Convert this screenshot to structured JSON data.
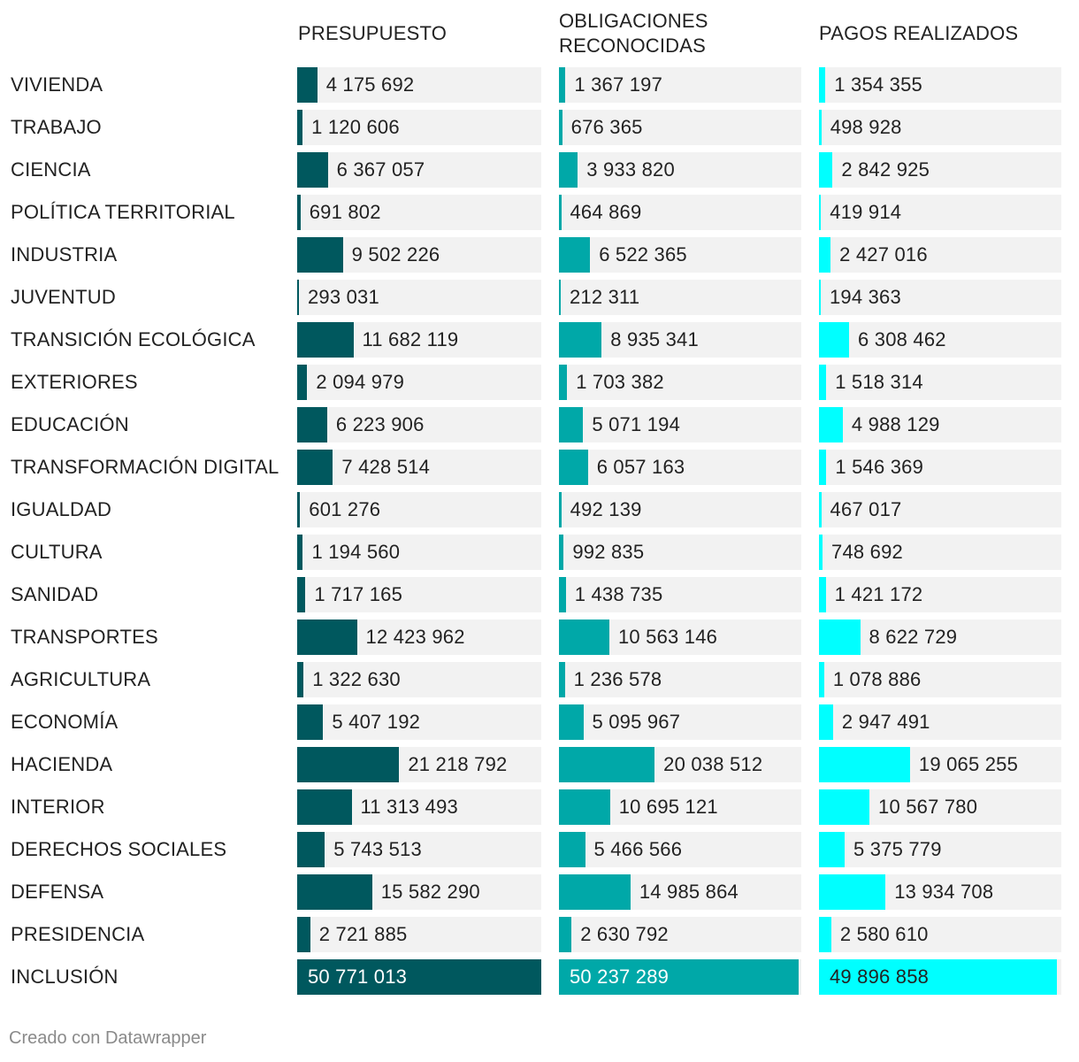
{
  "chart_data": {
    "type": "bar",
    "columns": [
      "PRESUPUESTO",
      "OBLIGACIONES RECONOCIDAS",
      "PAGOS REALIZADOS"
    ],
    "colors": [
      "#00585e",
      "#00a8a8",
      "#00ffff"
    ],
    "background_color": "#f2f2f2",
    "categories": [
      "VIVIENDA",
      "TRABAJO",
      "CIENCIA",
      "POLÍTICA TERRITORIAL",
      "INDUSTRIA",
      "JUVENTUD",
      "TRANSICIÓN ECOLÓGICA",
      "EXTERIORES",
      "EDUCACIÓN",
      "TRANSFORMACIÓN DIGITAL",
      "IGUALDAD",
      "CULTURA",
      "SANIDAD",
      "TRANSPORTES",
      "AGRICULTURA",
      "ECONOMÍA",
      "HACIENDA",
      "INTERIOR",
      "DERECHOS SOCIALES",
      "DEFENSA",
      "PRESIDENCIA",
      "INCLUSIÓN"
    ],
    "series": [
      {
        "name": "PRESUPUESTO",
        "values": [
          4175692,
          1120606,
          6367057,
          691802,
          9502226,
          293031,
          11682119,
          2094979,
          6223906,
          7428514,
          601276,
          1194560,
          1717165,
          12423962,
          1322630,
          5407192,
          21218792,
          11313493,
          5743513,
          15582290,
          2721885,
          50771013
        ],
        "labels": [
          "4 175 692",
          "1 120 606",
          "6 367 057",
          "691 802",
          "9 502 226",
          "293 031",
          "11 682 119",
          "2 094 979",
          "6 223 906",
          "7 428 514",
          "601 276",
          "1 194 560",
          "1 717 165",
          "12 423 962",
          "1 322 630",
          "5 407 192",
          "21 218 792",
          "11 313 493",
          "5 743 513",
          "15 582 290",
          "2 721 885",
          "50 771 013"
        ]
      },
      {
        "name": "OBLIGACIONES RECONOCIDAS",
        "values": [
          1367197,
          676365,
          3933820,
          464869,
          6522365,
          212311,
          8935341,
          1703382,
          5071194,
          6057163,
          492139,
          992835,
          1438735,
          10563146,
          1236578,
          5095967,
          20038512,
          10695121,
          5466566,
          14985864,
          2630792,
          50237289
        ],
        "labels": [
          "1 367 197",
          "676 365",
          "3 933 820",
          "464 869",
          "6 522 365",
          "212 311",
          "8 935 341",
          "1 703 382",
          "5 071 194",
          "6 057 163",
          "492 139",
          "992 835",
          "1 438 735",
          "10 563 146",
          "1 236 578",
          "5 095 967",
          "20 038 512",
          "10 695 121",
          "5 466 566",
          "14 985 864",
          "2 630 792",
          "50 237 289"
        ]
      },
      {
        "name": "PAGOS REALIZADOS",
        "values": [
          1354355,
          498928,
          2842925,
          419914,
          2427016,
          194363,
          6308462,
          1518314,
          4988129,
          1546369,
          467017,
          748692,
          1421172,
          8622729,
          1078886,
          2947491,
          19065255,
          10567780,
          5375779,
          13934708,
          2580610,
          49896858
        ],
        "labels": [
          "1 354 355",
          "498 928",
          "2 842 925",
          "419 914",
          "2 427 016",
          "194 363",
          "6 308 462",
          "1 518 314",
          "4 988 129",
          "1 546 369",
          "467 017",
          "748 692",
          "1 421 172",
          "8 622 729",
          "1 078 886",
          "2 947 491",
          "19 065 255",
          "10 567 780",
          "5 375 779",
          "13 934 708",
          "2 580 610",
          "49 896 858"
        ]
      }
    ],
    "xlim": [
      0,
      50771013
    ]
  },
  "footer": "Creado con Datawrapper"
}
